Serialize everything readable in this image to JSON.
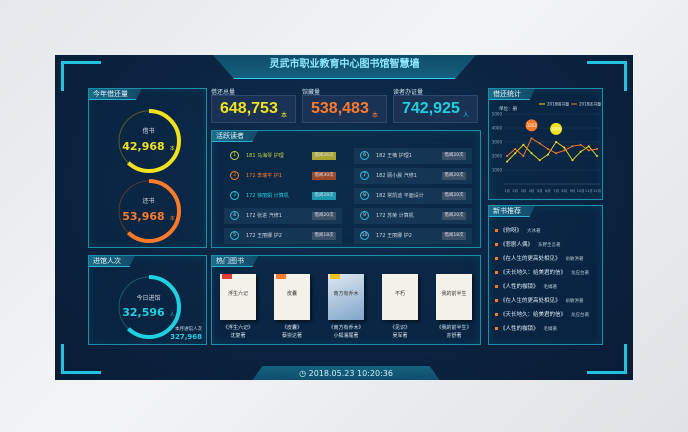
{
  "title": "灵武市职业教育中心图书馆智慧墙",
  "datetime": "2018.05.23  10:20:36",
  "colors": {
    "yellow": "#f2e21d",
    "orange": "#ff7a2a",
    "cyan": "#1fd0e0",
    "frame": "#22c3e0"
  },
  "loans": {
    "title": "今年借还量",
    "borrow": {
      "label": "借书",
      "value": "42,968",
      "unit": "本",
      "fraction": 0.62
    },
    "return": {
      "label": "还书",
      "value": "53,968",
      "unit": "本",
      "fraction": 0.62
    }
  },
  "visits": {
    "title": "进馆人次",
    "today_label": "今日进馆",
    "today_value": "32,596",
    "unit": "人",
    "fraction": 0.62,
    "month_label": "本月进馆人次",
    "month_value": "327,968"
  },
  "stats": [
    {
      "label": "借还总量",
      "value": "648,753",
      "unit": "本"
    },
    {
      "label": "馆藏量",
      "value": "538,483",
      "unit": "本"
    },
    {
      "label": "读者办证量",
      "value": "742,925",
      "unit": "人"
    }
  ],
  "readers": {
    "title": "活跃读者",
    "items": [
      {
        "rank": "1",
        "text": "181  马海琴  护理",
        "badge": "借阅26次"
      },
      {
        "rank": "2",
        "text": "172  李瑞平  护1",
        "badge": "借阅30次"
      },
      {
        "rank": "3",
        "text": "172  徐丽娟  计算机",
        "badge": "借阅28次"
      },
      {
        "rank": "4",
        "text": "172  张进  汽修1",
        "badge": "借阅20次"
      },
      {
        "rank": "5",
        "text": "172  王丽娜  护2",
        "badge": "借阅18次"
      },
      {
        "rank": "6",
        "text": "182  王楠  护理1",
        "badge": "借阅20次"
      },
      {
        "rank": "7",
        "text": "182  顾小晨  汽修1",
        "badge": "借阅20次"
      },
      {
        "rank": "8",
        "text": "182  常凯迪  平面设计",
        "badge": "借阅20次"
      },
      {
        "rank": "9",
        "text": "172  苏荣  计算机",
        "badge": "借阅20次"
      },
      {
        "rank": "10",
        "text": "172  王丽娜  护2",
        "badge": "借阅18次"
      }
    ]
  },
  "hot_books": {
    "title": "热门图书",
    "items": [
      {
        "name": "《浮生六记》",
        "author": "沈复著",
        "cover": "浮生六记"
      },
      {
        "name": "《皮囊》",
        "author": "蔡崇达著",
        "cover": "皮囊"
      },
      {
        "name": "《南方有乔木》",
        "author": "小狐濡尾著",
        "cover": "南方有乔木"
      },
      {
        "name": "《见识》",
        "author": "吴军著",
        "cover": "不朽"
      },
      {
        "name": "《我的前半生》",
        "author": "亦舒著",
        "cover": "我的前半生"
      }
    ]
  },
  "new_books": {
    "title": "新书推荐",
    "items": [
      {
        "name": "《你呀》",
        "author": "大冰著"
      },
      {
        "name": "《悲剧人偶》",
        "author": "东野圭吾著"
      },
      {
        "name": "《在人生的更高处相见》",
        "author": "俞敏洪著"
      },
      {
        "name": "《天长地久：给美君的信》",
        "author": "龙应台著"
      },
      {
        "name": "《人性的枷锁》",
        "author": "毛姆著"
      },
      {
        "name": "《在人生的更高处相见》",
        "author": "俞敏洪著"
      },
      {
        "name": "《天长地久：给美君的信》",
        "author": "龙应台著"
      },
      {
        "name": "《人性的枷锁》",
        "author": "毛姆著"
      }
    ]
  },
  "chart_data": {
    "type": "line",
    "title": "借还统计",
    "ylabel": "单位：册",
    "ylim": [
      0,
      5000
    ],
    "yticks": [
      "1000",
      "2000",
      "3000",
      "4000",
      "5000"
    ],
    "categories": [
      "1月",
      "2月",
      "3月",
      "4月",
      "5月",
      "6月",
      "7月",
      "8月",
      "9月",
      "10月",
      "11月",
      "12月"
    ],
    "legend_position": "top-right",
    "series": [
      {
        "name": "2018借书量",
        "color": "#f2e21d",
        "values": [
          1600,
          2200,
          2800,
          2200,
          1700,
          2100,
          3006,
          2600,
          1700,
          2300,
          2700,
          2000
        ]
      },
      {
        "name": "2018还书量",
        "color": "#ff7a2a",
        "values": [
          2000,
          2500,
          2000,
          3263,
          2900,
          2500,
          2200,
          2400,
          2700,
          2800,
          2400,
          2500
        ]
      }
    ],
    "annotations": [
      {
        "series": "2018还书量",
        "category": "4月",
        "text": "3263"
      },
      {
        "series": "2018借书量",
        "category": "7月",
        "text": "3006"
      }
    ]
  }
}
